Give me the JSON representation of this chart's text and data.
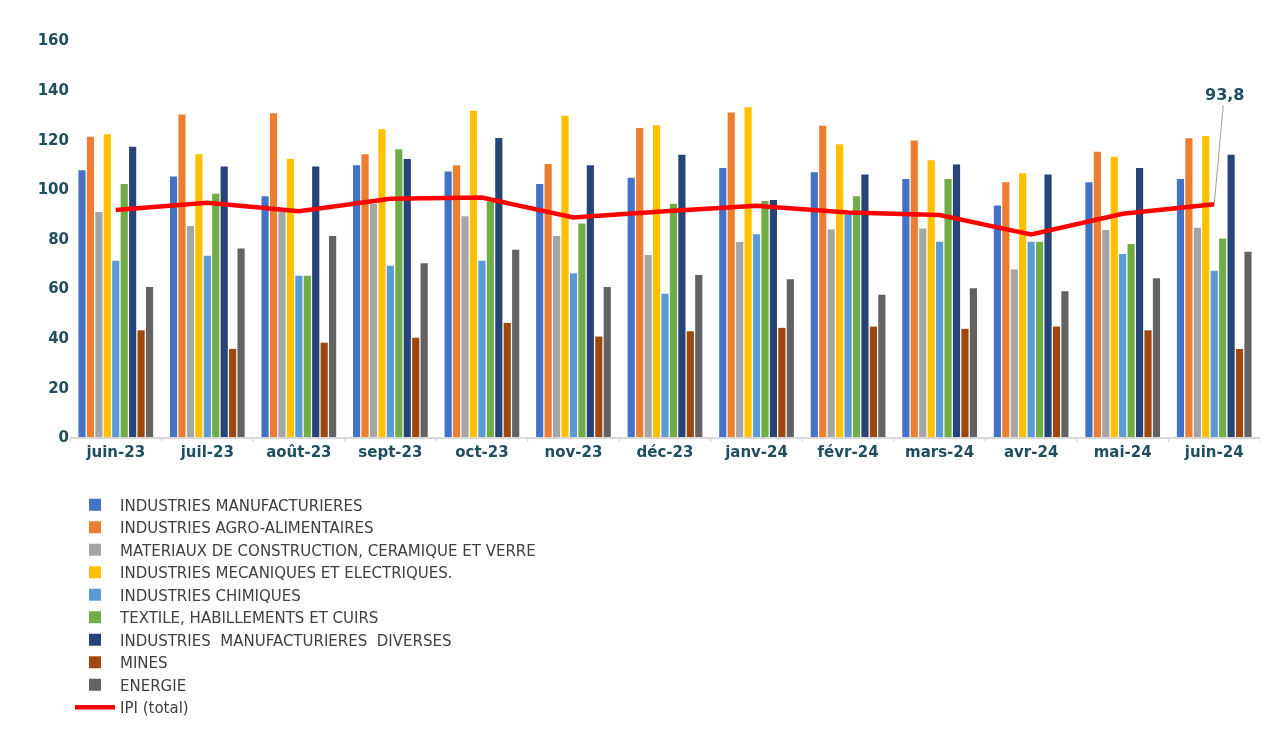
{
  "chart_data": {
    "type": "bar",
    "categories": [
      "juin-23",
      "juil-23",
      "août-23",
      "sept-23",
      "oct-23",
      "nov-23",
      "déc-23",
      "janv-24",
      "févr-24",
      "mars-24",
      "avr-24",
      "mai-24",
      "juin-24"
    ],
    "ylim": [
      0,
      160
    ],
    "yticks": [
      0,
      20,
      40,
      60,
      80,
      100,
      120,
      140,
      160
    ],
    "grid": false,
    "legend": "bottom",
    "series": [
      {
        "name": "INDUSTRIES MANUFACTURIERES",
        "color": "#4472c4",
        "values": [
          107.5,
          105,
          97,
          109.5,
          107,
          102,
          104.5,
          108.4,
          106.7,
          104,
          93.3,
          102.7,
          104
        ]
      },
      {
        "name": "INDUSTRIES AGRO-ALIMENTAIRES",
        "color": "#ed7d31",
        "values": [
          121,
          130,
          130.5,
          114,
          109.5,
          110,
          124.5,
          130.8,
          125.4,
          119.5,
          102.7,
          115,
          120.4
        ]
      },
      {
        "name": "MATERIAUX DE CONSTRUCTION, CERAMIQUE ET VERRE",
        "color": "#a5a5a5",
        "values": [
          90.7,
          85,
          91,
          94,
          89,
          81,
          73.4,
          78.6,
          83.6,
          84,
          67.5,
          83.4,
          84.3
        ]
      },
      {
        "name": "INDUSTRIES MECANIQUES ET ELECTRIQUES.",
        "color": "#ffc000",
        "values": [
          122,
          114,
          112,
          124,
          131.5,
          129.5,
          125.6,
          132.9,
          118,
          111.5,
          106.3,
          112.9,
          121.3
        ]
      },
      {
        "name": "INDUSTRIES CHIMIQUES",
        "color": "#5b9bd5",
        "values": [
          71,
          73,
          65,
          69,
          71,
          66,
          57.7,
          81.7,
          89.5,
          78.7,
          78.7,
          73.8,
          67
        ]
      },
      {
        "name": "TEXTILE, HABILLEMENTS ET CUIRS",
        "color": "#70ad47",
        "values": [
          102,
          98,
          65,
          116,
          95,
          86,
          94,
          95.1,
          97,
          104,
          78.7,
          77.8,
          80
        ]
      },
      {
        "name": "INDUSTRIES  MANUFACTURIERES  DIVERSES",
        "color": "#264478",
        "values": [
          117,
          109,
          109,
          112,
          120.5,
          109.5,
          113.8,
          95.5,
          105.8,
          109.8,
          105.8,
          108.4,
          113.8
        ]
      },
      {
        "name": "MINES",
        "color": "#9e480e",
        "values": [
          43,
          35.5,
          38,
          40,
          46,
          40.5,
          42.6,
          44,
          44.5,
          43.6,
          44.5,
          43,
          35.5
        ]
      },
      {
        "name": "ENERGIE",
        "color": "#636363",
        "values": [
          60.5,
          76,
          81,
          70,
          75.5,
          60.5,
          65.3,
          63.6,
          57.3,
          60,
          58.7,
          64,
          74.7
        ]
      },
      {
        "name": "IPI (total)",
        "color": "#ff0000",
        "type": "line",
        "marker": "none",
        "line_style": "solid",
        "values": [
          91.5,
          94.4,
          91,
          96,
          96.5,
          88.5,
          91,
          93.2,
          90.5,
          89.5,
          81.6,
          90,
          93.8
        ],
        "value_labels": [
          null,
          null,
          null,
          null,
          null,
          null,
          null,
          null,
          null,
          null,
          null,
          null,
          "93,8"
        ]
      }
    ]
  }
}
